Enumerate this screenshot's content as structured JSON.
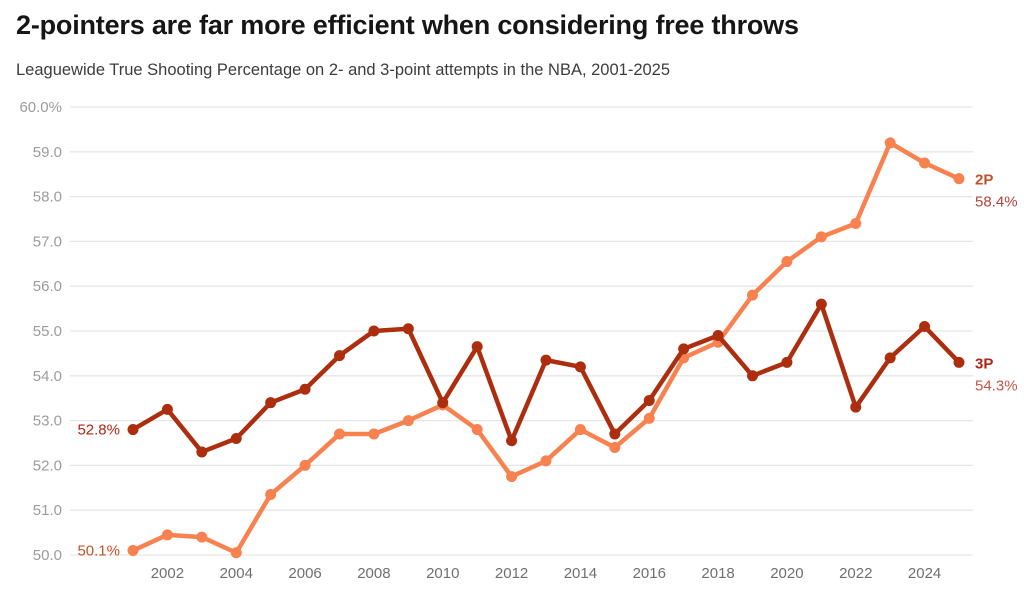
{
  "header": {
    "title": "2-pointers are far more efficient when considering free throws",
    "subtitle": "Leaguewide True Shooting Percentage on 2- and 3-point attempts in the NBA, 2001-2025"
  },
  "colors": {
    "background": "#ffffff",
    "gridline": "#e6e6e6",
    "title_text": "#161616",
    "subtitle_text": "#3d3d3d",
    "y_tick_text": "#9c9c9c",
    "x_tick_text": "#707070",
    "line_2p": "#f8824f",
    "line_3p": "#ac2e0e"
  },
  "chart_data": {
    "type": "line",
    "title": "2-pointers are far more efficient when considering free throws",
    "subtitle": "Leaguewide True Shooting Percentage on 2- and 3-point attempts in the NBA, 2001-2025",
    "xlabel": "",
    "ylabel": "True Shooting Percentage",
    "grid": "horizontal",
    "legend_position": "end-of-line-labels",
    "ylim": [
      50,
      60
    ],
    "x": [
      2001,
      2002,
      2003,
      2004,
      2005,
      2006,
      2007,
      2008,
      2009,
      2010,
      2011,
      2012,
      2013,
      2014,
      2015,
      2016,
      2017,
      2018,
      2019,
      2020,
      2021,
      2022,
      2023,
      2024,
      2025
    ],
    "x_ticks": [
      2002,
      2004,
      2006,
      2008,
      2010,
      2012,
      2014,
      2016,
      2018,
      2020,
      2022,
      2024
    ],
    "y_ticks": [
      {
        "value": 60,
        "label": "60.0%"
      },
      {
        "value": 59,
        "label": "59.0"
      },
      {
        "value": 58,
        "label": "58.0"
      },
      {
        "value": 57,
        "label": "57.0"
      },
      {
        "value": 56,
        "label": "56.0"
      },
      {
        "value": 55,
        "label": "55.0"
      },
      {
        "value": 54,
        "label": "54.0"
      },
      {
        "value": 53,
        "label": "53.0"
      },
      {
        "value": 52,
        "label": "52.0"
      },
      {
        "value": 51,
        "label": "51.0"
      },
      {
        "value": 50,
        "label": "50.0"
      }
    ],
    "series": [
      {
        "name": "2P",
        "line_color": "#f8824f",
        "label_color": "#c2522a",
        "value_color": "#af4538",
        "start_label": "50.1%",
        "end_label": "58.4%",
        "values": [
          50.1,
          50.45,
          50.4,
          50.05,
          51.35,
          52.0,
          52.7,
          52.7,
          53.0,
          53.35,
          52.8,
          51.75,
          52.1,
          52.8,
          52.4,
          53.05,
          54.4,
          54.75,
          55.8,
          56.55,
          57.1,
          57.4,
          59.2,
          58.75,
          58.4
        ]
      },
      {
        "name": "3P",
        "line_color": "#ac2e0e",
        "label_color": "#ad2513",
        "value_color": "#c05848",
        "start_label": "52.8%",
        "end_label": "54.3%",
        "values": [
          52.8,
          53.25,
          52.3,
          52.6,
          53.4,
          53.7,
          54.45,
          55.0,
          55.05,
          53.4,
          54.65,
          52.55,
          54.35,
          54.2,
          52.7,
          53.45,
          54.6,
          54.9,
          54.0,
          54.3,
          55.6,
          53.3,
          54.4,
          55.1,
          54.3
        ]
      }
    ]
  }
}
